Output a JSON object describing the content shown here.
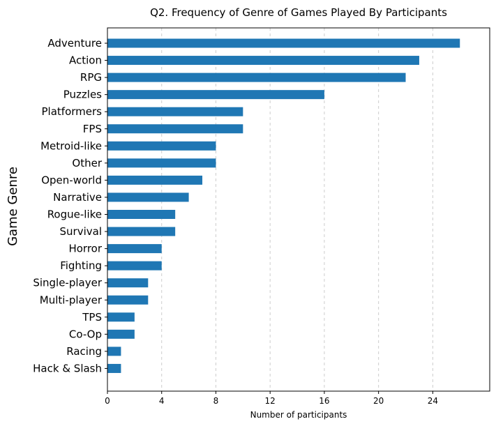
{
  "chart_data": {
    "type": "bar",
    "orientation": "horizontal",
    "title": "Q2. Frequency of Genre of Games Played By Participants",
    "xlabel": "Number of participants",
    "ylabel": "Game Genre",
    "categories": [
      "Adventure",
      "Action",
      "RPG",
      "Puzzles",
      "Platformers",
      "FPS",
      "Metroid-like",
      "Other",
      "Open-world",
      "Narrative",
      "Rogue-like",
      "Survival",
      "Horror",
      "Fighting",
      "Single-player",
      "Multi-player",
      "TPS",
      "Co-Op",
      "Racing",
      "Hack & Slash"
    ],
    "values": [
      26,
      23,
      22,
      16,
      10,
      10,
      8,
      8,
      7,
      6,
      5,
      5,
      4,
      4,
      3,
      3,
      2,
      2,
      1,
      1
    ],
    "xticks": [
      0,
      4,
      8,
      12,
      16,
      20,
      24
    ],
    "xlim": [
      0,
      28.2
    ],
    "grid": "x-dashed",
    "bar_color": "#1f77b4"
  }
}
